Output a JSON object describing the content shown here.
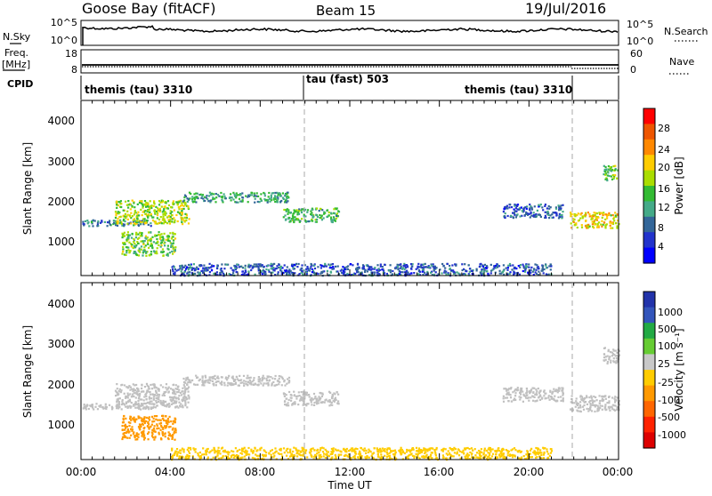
{
  "header": {
    "station": "Goose Bay (fitACF)",
    "beam": "Beam 15",
    "date": "19/Jul/2016"
  },
  "left_labels": {
    "nsky": "N.Sky",
    "freq": "Freq.",
    "freq_unit": "[MHz]",
    "cpid": "CPID"
  },
  "right_labels": {
    "nsearch": "N.Search",
    "nave": "Nave"
  },
  "noise_panel": {
    "left_ticks": [
      "10^5",
      "10^0"
    ],
    "right_ticks": [
      "10^5",
      "10^0"
    ]
  },
  "freq_panel": {
    "left_ticks": [
      "18",
      "8"
    ],
    "right_ticks": [
      "60",
      "0"
    ]
  },
  "cpid_segments": [
    {
      "label": "themis (tau) 3310"
    },
    {
      "label": "tau (fast) 503"
    },
    {
      "label": "themis (tau) 3310"
    }
  ],
  "power_panel": {
    "ylabel": "Slant Range [km]",
    "cbar_label": "Power [dB]",
    "cbar_ticks": [
      "28",
      "24",
      "20",
      "16",
      "12",
      "8",
      "4"
    ],
    "colors": [
      "#ff0000",
      "#ee5500",
      "#ff8800",
      "#ffcc00",
      "#aadd00",
      "#33bb33",
      "#44aa88",
      "#336699",
      "#2233cc",
      "#0000ff"
    ]
  },
  "velocity_panel": {
    "ylabel": "Slant Range [km]",
    "cbar_label": "Velocity [m s⁻¹]",
    "cbar_ticks": [
      "1000",
      "500",
      "100",
      "25",
      "-25",
      "-100",
      "-500",
      "-1000"
    ],
    "colors": [
      "#2233aa",
      "#3355bb",
      "#22aa44",
      "#66cc33",
      "#c8c8c8",
      "#ffcc00",
      "#ff9900",
      "#ff6600",
      "#ff2200",
      "#dd0000"
    ],
    "ground_scatter": "#c0c0c0"
  },
  "xaxis": {
    "label": "Time UT",
    "ticks": [
      "00:00",
      "04:00",
      "08:00",
      "12:00",
      "16:00",
      "20:00",
      "00:00"
    ]
  },
  "y_ticks": [
    "4000",
    "3000",
    "2000",
    "1000"
  ],
  "chart_data": {
    "type": "heatmap",
    "x_range_hours": [
      0,
      24
    ],
    "y_range_km": [
      180,
      4600
    ],
    "cpid_boundaries_hours": [
      10,
      22
    ],
    "scatter_bands": [
      {
        "from_h": 0.0,
        "to_h": 3.2,
        "ranges_km": [
          1450,
          1600
        ],
        "power_db": 10,
        "velocity": 20
      },
      {
        "from_h": 1.5,
        "to_h": 4.8,
        "ranges_km": [
          1500,
          2100
        ],
        "power_db": 18,
        "velocity": 10
      },
      {
        "from_h": 1.8,
        "to_h": 4.2,
        "ranges_km": [
          700,
          1300
        ],
        "power_db": 16,
        "velocity": -150
      },
      {
        "from_h": 4.5,
        "to_h": 9.3,
        "ranges_km": [
          2050,
          2300
        ],
        "power_db": 12,
        "velocity": 10
      },
      {
        "from_h": 9.0,
        "to_h": 11.5,
        "ranges_km": [
          1550,
          1900
        ],
        "power_db": 14,
        "velocity": 10
      },
      {
        "from_h": 4.0,
        "to_h": 21.0,
        "ranges_km": [
          200,
          500
        ],
        "power_db": 8,
        "velocity": -40
      },
      {
        "from_h": 18.8,
        "to_h": 21.5,
        "ranges_km": [
          1650,
          2000
        ],
        "power_db": 8,
        "velocity": 10
      },
      {
        "from_h": 21.8,
        "to_h": 24.0,
        "ranges_km": [
          1400,
          1800
        ],
        "power_db": 20,
        "velocity": 10
      },
      {
        "from_h": 23.3,
        "to_h": 24.0,
        "ranges_km": [
          2600,
          3000
        ],
        "power_db": 16,
        "velocity": 10
      }
    ]
  }
}
